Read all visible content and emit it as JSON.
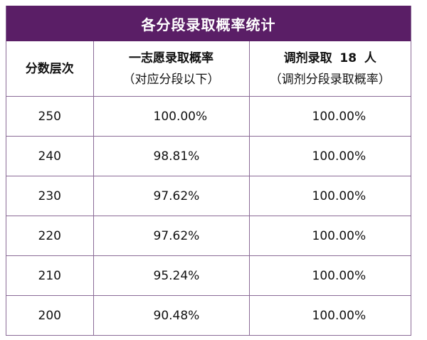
{
  "title": "各分段录取概率统计",
  "headers": {
    "col1": "分数层次",
    "col2_line1": "一志愿录取概率",
    "col2_line2": "（对应分段以下）",
    "col3_line1_prefix": "调剂录取",
    "col3_line1_count": "18",
    "col3_line1_suffix": "人",
    "col3_line2": "（调剂分段录取概率）"
  },
  "rows": [
    {
      "score": "250",
      "first_choice": "100.00%",
      "adjust": "100.00%"
    },
    {
      "score": "240",
      "first_choice": "98.81%",
      "adjust": "100.00%"
    },
    {
      "score": "230",
      "first_choice": "97.62%",
      "adjust": "100.00%"
    },
    {
      "score": "220",
      "first_choice": "97.62%",
      "adjust": "100.00%"
    },
    {
      "score": "210",
      "first_choice": "95.24%",
      "adjust": "100.00%"
    },
    {
      "score": "200",
      "first_choice": "90.48%",
      "adjust": "100.00%"
    }
  ],
  "colors": {
    "header_bg": "#5a1e66",
    "header_text": "#ffffff",
    "border": "#8a6a96"
  }
}
